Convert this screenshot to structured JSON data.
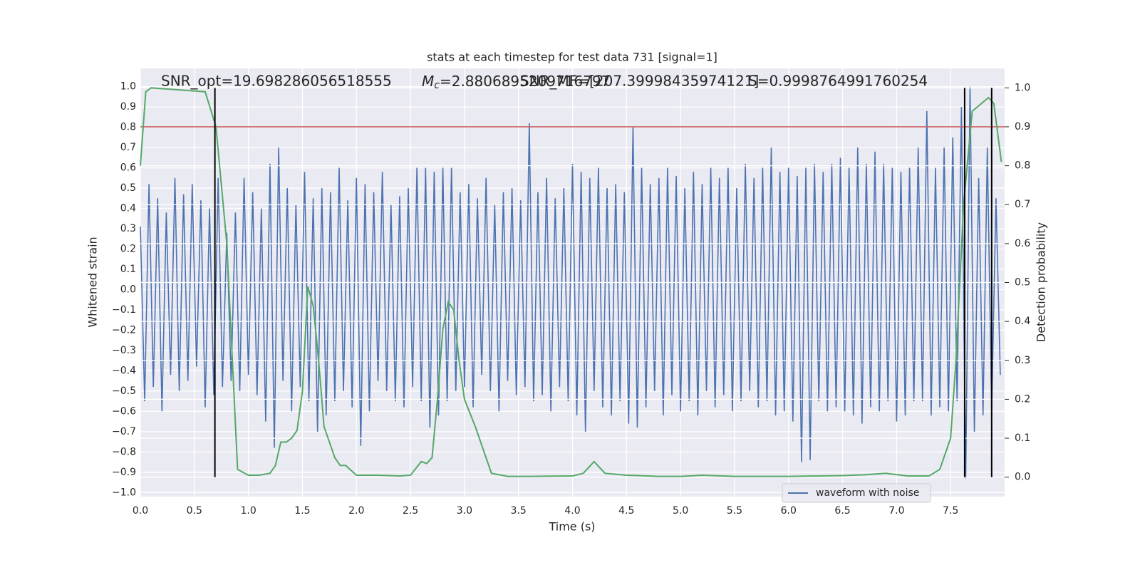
{
  "chart_data": {
    "type": "line",
    "title": "stats at each timestep for test data 731 [signal=1]",
    "xlabel": "Time (s)",
    "ylabel": "Whitened strain",
    "y2label": "Detection probability",
    "annotations": [
      "SNR_opt=19.698286056518555",
      {
        "base": "M",
        "sub": "c",
        "text": "=2.8806895209716797"
      },
      "SNR_MF=[207.39998435974121]",
      "S=0.9998764991760254"
    ],
    "xlim": [
      0,
      8
    ],
    "xticks": [
      {
        "value": 0,
        "label": "0.0"
      },
      0.5,
      {
        "value": 1,
        "label": "1.0"
      },
      1.5,
      {
        "value": 2,
        "label": "2.0"
      },
      2.5,
      {
        "value": 3,
        "label": "3.0"
      },
      3.5,
      {
        "value": 4,
        "label": "4.0"
      },
      4.5,
      {
        "value": 5,
        "label": "5.0"
      },
      5.5,
      {
        "value": 6,
        "label": "6.0"
      },
      6.5,
      {
        "value": 7,
        "label": "7.0"
      },
      7.5
    ],
    "ylim": [
      -1.02,
      1.09
    ],
    "yticks": [
      {
        "value": -1,
        "label": "−1.0"
      },
      {
        "value": -0.9,
        "label": "−0.9"
      },
      {
        "value": -0.8,
        "label": "−0.8"
      },
      {
        "value": -0.7,
        "label": "−0.7"
      },
      {
        "value": -0.6,
        "label": "−0.6"
      },
      {
        "value": -0.5,
        "label": "−0.5"
      },
      {
        "value": -0.4,
        "label": "−0.4"
      },
      {
        "value": -0.3,
        "label": "−0.3"
      },
      {
        "value": -0.2,
        "label": "−0.2"
      },
      {
        "value": -0.1,
        "label": "−0.1"
      },
      {
        "value": 0,
        "label": "0.0"
      },
      0.1,
      0.2,
      0.3,
      0.4,
      0.5,
      0.6,
      0.7,
      0.8,
      0.9,
      {
        "value": 1,
        "label": "1.0"
      }
    ],
    "y2lim": [
      -0.05,
      1.05
    ],
    "y2ticks": [
      {
        "value": 0,
        "label": "0.0"
      },
      0.1,
      0.2,
      0.3,
      0.4,
      0.5,
      0.6,
      0.7,
      0.8,
      0.9,
      {
        "value": 1,
        "label": "1.0"
      }
    ],
    "grid": true,
    "legend": "lower right",
    "series": [
      {
        "name": "waveform with noise",
        "color": "#4c72b0",
        "x": [
          0,
          0.04,
          0.08,
          0.12,
          0.16,
          0.2,
          0.24,
          0.28,
          0.32,
          0.36,
          0.4,
          0.44,
          0.48,
          0.52,
          0.56,
          0.6,
          0.64,
          0.68,
          0.72,
          0.76,
          0.8,
          0.84,
          0.88,
          0.92,
          0.96,
          1,
          1.04,
          1.08,
          1.12,
          1.16,
          1.2,
          1.24,
          1.28,
          1.32,
          1.36,
          1.4,
          1.44,
          1.48,
          1.52,
          1.56,
          1.6,
          1.64,
          1.68,
          1.72,
          1.76,
          1.8,
          1.84,
          1.88,
          1.92,
          1.96,
          2,
          2.04,
          2.08,
          2.12,
          2.16,
          2.2,
          2.24,
          2.28,
          2.32,
          2.36,
          2.4,
          2.44,
          2.48,
          2.52,
          2.56,
          2.6,
          2.64,
          2.68,
          2.72,
          2.76,
          2.8,
          2.84,
          2.88,
          2.92,
          2.96,
          3,
          3.04,
          3.08,
          3.12,
          3.16,
          3.2,
          3.24,
          3.28,
          3.32,
          3.36,
          3.4,
          3.44,
          3.48,
          3.52,
          3.56,
          3.6,
          3.64,
          3.68,
          3.72,
          3.76,
          3.8,
          3.84,
          3.88,
          3.92,
          3.96,
          4,
          4.04,
          4.08,
          4.12,
          4.16,
          4.2,
          4.24,
          4.28,
          4.32,
          4.36,
          4.4,
          4.44,
          4.48,
          4.52,
          4.56,
          4.6,
          4.64,
          4.68,
          4.72,
          4.76,
          4.8,
          4.84,
          4.88,
          4.92,
          4.96,
          5,
          5.04,
          5.08,
          5.12,
          5.16,
          5.2,
          5.24,
          5.28,
          5.32,
          5.36,
          5.4,
          5.44,
          5.48,
          5.52,
          5.56,
          5.6,
          5.64,
          5.68,
          5.72,
          5.76,
          5.8,
          5.84,
          5.88,
          5.92,
          5.96,
          6,
          6.04,
          6.08,
          6.12,
          6.16,
          6.2,
          6.24,
          6.28,
          6.32,
          6.36,
          6.4,
          6.44,
          6.48,
          6.52,
          6.56,
          6.6,
          6.64,
          6.68,
          6.72,
          6.76,
          6.8,
          6.84,
          6.88,
          6.92,
          6.96,
          7,
          7.04,
          7.08,
          7.12,
          7.16,
          7.2,
          7.24,
          7.28,
          7.32,
          7.36,
          7.4,
          7.44,
          7.48,
          7.52,
          7.56,
          7.6,
          7.64,
          7.68,
          7.72,
          7.76,
          7.8,
          7.84,
          7.88,
          7.92,
          7.96
        ],
        "values": [
          0.31,
          -0.55,
          0.52,
          -0.48,
          0.45,
          -0.6,
          0.38,
          -0.42,
          0.55,
          -0.5,
          0.47,
          -0.45,
          0.52,
          -0.38,
          0.44,
          -0.58,
          0.4,
          -0.52,
          0.55,
          -0.48,
          0.28,
          -0.45,
          0.38,
          -0.5,
          0.55,
          -0.42,
          0.48,
          -0.52,
          0.4,
          -0.65,
          0.62,
          -0.78,
          0.7,
          -0.45,
          0.5,
          -0.6,
          0.42,
          -0.48,
          0.58,
          -0.55,
          0.45,
          -0.7,
          0.5,
          -0.62,
          0.48,
          -0.55,
          0.6,
          -0.5,
          0.44,
          -0.58,
          0.55,
          -0.77,
          0.52,
          -0.6,
          0.48,
          -0.45,
          0.58,
          -0.5,
          0.42,
          -0.55,
          0.46,
          -0.58,
          0.5,
          -0.48,
          0.6,
          -0.55,
          0.6,
          -0.68,
          0.58,
          -0.62,
          0.6,
          -0.55,
          0.6,
          -0.5,
          0.48,
          -0.48,
          0.52,
          -0.58,
          0.45,
          -0.42,
          0.55,
          -0.5,
          0.42,
          -0.6,
          0.48,
          -0.45,
          0.5,
          -0.52,
          0.44,
          -0.48,
          0.82,
          -0.55,
          0.48,
          -0.52,
          0.55,
          -0.6,
          0.45,
          -0.48,
          0.5,
          -0.55,
          0.62,
          -0.62,
          0.58,
          -0.7,
          0.55,
          -0.5,
          0.6,
          -0.58,
          0.5,
          -0.62,
          0.52,
          -0.55,
          0.48,
          -0.66,
          0.8,
          -0.68,
          0.6,
          -0.58,
          0.52,
          -0.5,
          0.55,
          -0.62,
          0.6,
          -0.52,
          0.56,
          -0.6,
          0.5,
          -0.55,
          0.58,
          -0.62,
          0.52,
          -0.5,
          0.6,
          -0.58,
          0.55,
          -0.52,
          0.6,
          -0.6,
          0.5,
          -0.55,
          0.62,
          -0.5,
          0.55,
          -0.58,
          0.6,
          -0.55,
          0.7,
          -0.62,
          0.58,
          -0.6,
          0.6,
          -0.65,
          0.56,
          -0.85,
          0.6,
          -0.84,
          0.62,
          -0.55,
          0.58,
          -0.6,
          0.62,
          -0.58,
          0.65,
          -0.6,
          0.6,
          -0.62,
          0.7,
          -0.66,
          0.62,
          -0.58,
          0.68,
          -0.6,
          0.62,
          -0.55,
          0.6,
          -0.65,
          0.58,
          -0.62,
          0.6,
          -0.55,
          0.7,
          -0.55,
          0.88,
          -0.62,
          0.6,
          -0.58,
          0.7,
          -0.6,
          0.75,
          -0.55,
          0.9,
          -0.93,
          1.0,
          -0.7,
          0.55,
          -0.62,
          0.7,
          -0.6,
          0.45,
          -0.42
        ]
      }
    ],
    "probability": {
      "color": "#55a868",
      "axis": "y2",
      "x": [
        0,
        0.05,
        0.1,
        0.6,
        0.7,
        0.8,
        0.9,
        1.0,
        1.1,
        1.2,
        1.25,
        1.3,
        1.35,
        1.4,
        1.45,
        1.5,
        1.55,
        1.6,
        1.65,
        1.7,
        1.8,
        1.85,
        1.9,
        2.0,
        2.2,
        2.4,
        2.5,
        2.6,
        2.65,
        2.7,
        2.75,
        2.8,
        2.85,
        2.9,
        2.95,
        3.0,
        3.1,
        3.2,
        3.25,
        3.4,
        3.6,
        4.0,
        4.1,
        4.2,
        4.3,
        4.5,
        4.8,
        5.0,
        5.2,
        5.5,
        6.0,
        6.5,
        6.7,
        6.9,
        7.1,
        7.3,
        7.4,
        7.5,
        7.55,
        7.62,
        7.7,
        7.85,
        7.9,
        7.97
      ],
      "values": [
        0.8,
        0.99,
        1.0,
        0.99,
        0.9,
        0.6,
        0.02,
        0.005,
        0.005,
        0.01,
        0.03,
        0.09,
        0.09,
        0.1,
        0.12,
        0.22,
        0.49,
        0.44,
        0.3,
        0.13,
        0.05,
        0.03,
        0.03,
        0.005,
        0.005,
        0.003,
        0.005,
        0.04,
        0.035,
        0.05,
        0.2,
        0.38,
        0.45,
        0.43,
        0.3,
        0.2,
        0.13,
        0.05,
        0.01,
        0.002,
        0.002,
        0.003,
        0.01,
        0.04,
        0.01,
        0.005,
        0.002,
        0.002,
        0.005,
        0.002,
        0.002,
        0.004,
        0.006,
        0.01,
        0.003,
        0.003,
        0.02,
        0.1,
        0.3,
        0.7,
        0.94,
        0.975,
        0.96,
        0.81
      ]
    },
    "threshold": {
      "y": 0.9,
      "axis": "y2",
      "color": "#c44e52"
    },
    "vlines": {
      "x": [
        0.69,
        7.63,
        7.88
      ],
      "ymin": 0,
      "ymax": 1,
      "axis": "y2",
      "color": "#000000"
    }
  }
}
